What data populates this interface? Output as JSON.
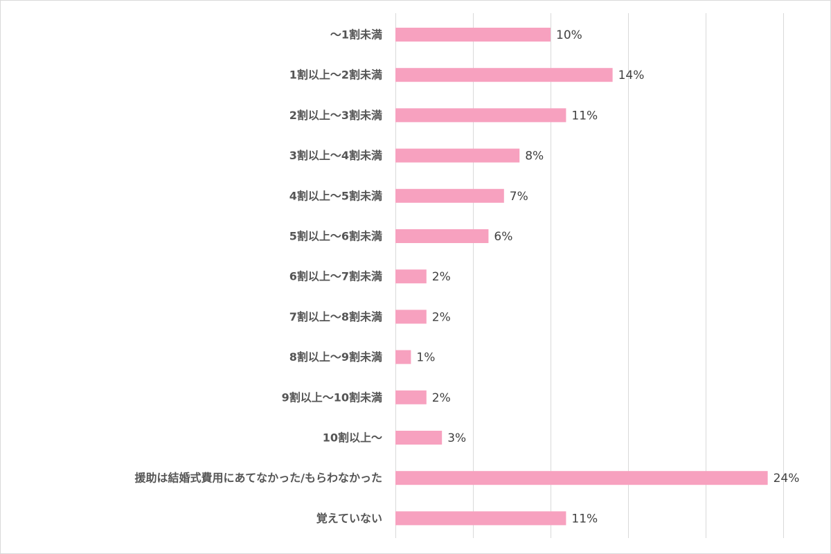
{
  "chart_data": {
    "type": "bar",
    "orientation": "horizontal",
    "categories": [
      "～1割未満",
      "1割以上～2割未満",
      "2割以上～3割未満",
      "3割以上～4割未満",
      "4割以上～5割未満",
      "5割以上～6割未満",
      "6割以上～7割未満",
      "7割以上～8割未満",
      "8割以上～9割未満",
      "9割以上～10割未満",
      "10割以上～",
      "援助は結婚式費用にあてなかった/もらわなかった",
      "覚えていない"
    ],
    "values": [
      10,
      14,
      11,
      8,
      7,
      6,
      2,
      2,
      1,
      2,
      3,
      24,
      11
    ],
    "value_labels": [
      "10%",
      "14%",
      "11%",
      "8%",
      "7%",
      "6%",
      "2%",
      "2%",
      "1%",
      "2%",
      "3%",
      "24%",
      "11%"
    ],
    "unit": "%",
    "xlim": [
      0,
      25
    ],
    "grid_step": 5,
    "grid": true,
    "legend": "none",
    "title": "",
    "xlabel": "",
    "ylabel": "",
    "bar_color": "#f7a1bf"
  }
}
